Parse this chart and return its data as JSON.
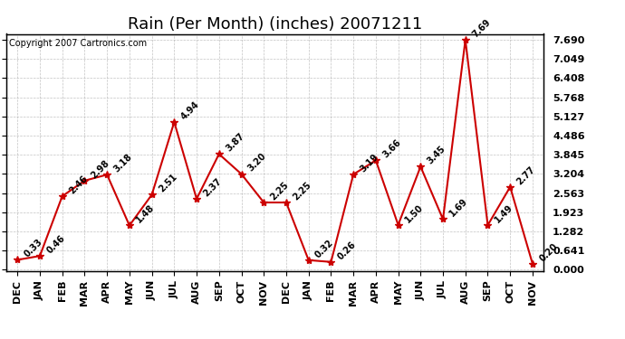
{
  "title": "Rain (Per Month) (inches) 20071211",
  "copyright": "Copyright 2007 Cartronics.com",
  "months": [
    "DEC",
    "JAN",
    "FEB",
    "MAR",
    "APR",
    "MAY",
    "JUN",
    "JUL",
    "AUG",
    "SEP",
    "OCT",
    "NOV",
    "DEC",
    "JAN",
    "FEB",
    "MAR",
    "APR",
    "MAY",
    "JUN",
    "JUL",
    "AUG",
    "SEP",
    "OCT",
    "NOV"
  ],
  "values": [
    0.33,
    0.46,
    2.46,
    2.98,
    3.18,
    1.48,
    2.51,
    4.94,
    2.37,
    3.87,
    3.2,
    2.25,
    2.25,
    0.32,
    0.26,
    3.19,
    3.66,
    1.5,
    3.45,
    1.69,
    7.69,
    1.49,
    2.77,
    0.2
  ],
  "line_color": "#cc0000",
  "marker": "*",
  "bg_color": "#ffffff",
  "grid_color": "#aaaaaa",
  "ymin": 0.0,
  "ymax": 7.69,
  "yticks": [
    0.0,
    0.641,
    1.282,
    1.923,
    2.563,
    3.204,
    3.845,
    4.486,
    5.127,
    5.768,
    6.408,
    7.049,
    7.69
  ],
  "title_fontsize": 13,
  "label_fontsize": 8,
  "annotation_fontsize": 7,
  "copyright_fontsize": 7
}
